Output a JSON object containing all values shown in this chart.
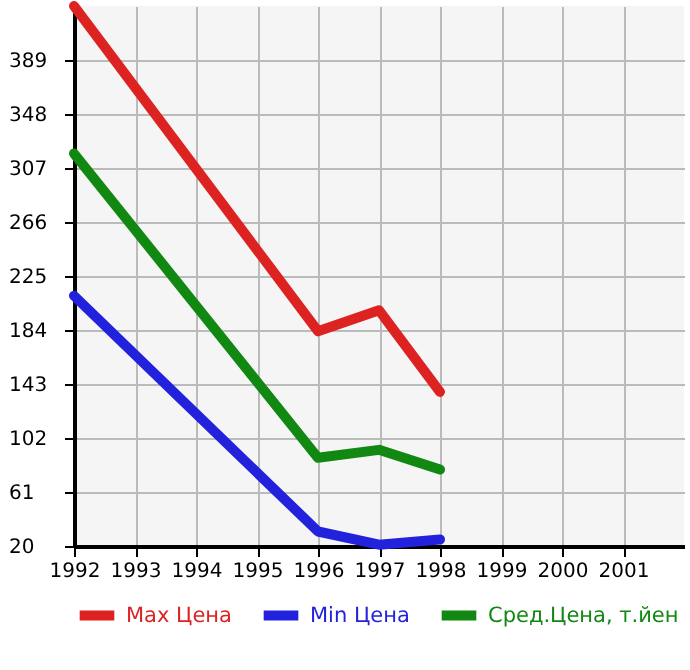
{
  "chart_data": {
    "type": "line",
    "x": [
      1992,
      1996,
      1997,
      1998
    ],
    "series": [
      {
        "name": "Max Цена",
        "color": "#dd2222",
        "values": [
          430,
          183,
          199,
          137
        ]
      },
      {
        "name": "Min Цена",
        "color": "#2222dd",
        "values": [
          210,
          31,
          21,
          25
        ]
      },
      {
        "name": "Сред.Цена, т.йен",
        "color": "#118811",
        "values": [
          318,
          87,
          93,
          78
        ]
      }
    ],
    "xlim": [
      1992,
      2002
    ],
    "xticks": [
      1992,
      1993,
      1994,
      1995,
      1996,
      1997,
      1998,
      1999,
      2000,
      2001
    ],
    "ylim": [
      20,
      430
    ],
    "yticks": [
      20,
      61,
      102,
      143,
      184,
      225,
      266,
      307,
      348,
      389
    ],
    "grid": true,
    "legend": "bottom",
    "marker": "none",
    "line_style": "solid"
  }
}
